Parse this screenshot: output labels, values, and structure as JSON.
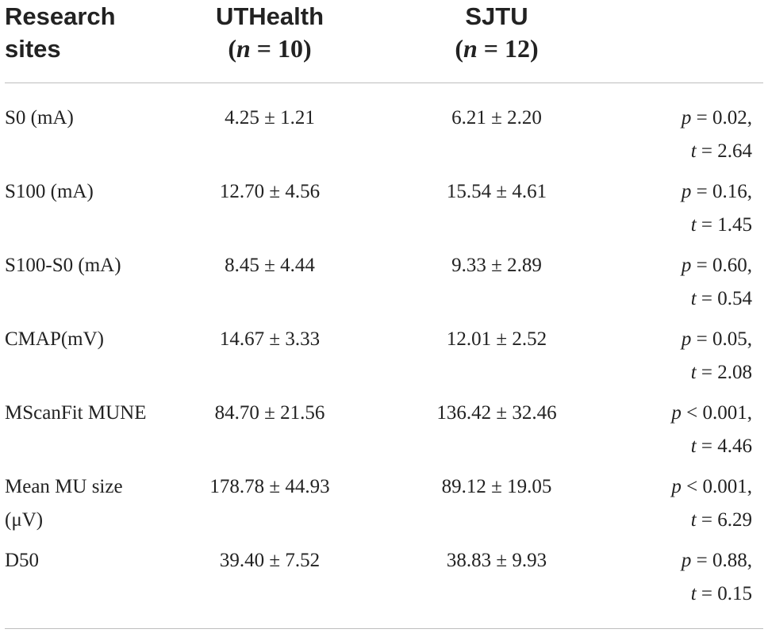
{
  "header": {
    "col1_line1": "Research",
    "col1_line2": "sites",
    "col2_name": "UTHealth",
    "col2_n": "10",
    "col3_name": "SJTU",
    "col3_n": "12"
  },
  "rows": [
    {
      "label": "S0 (mA)",
      "v1": "4.25 ± 1.21",
      "v2": "6.21 ± 2.20",
      "p_op": "=",
      "p": "0.02,",
      "t": "2.64"
    },
    {
      "label": "S100 (mA)",
      "v1": "12.70 ± 4.56",
      "v2": "15.54 ± 4.61",
      "p_op": "=",
      "p": "0.16,",
      "t": "1.45"
    },
    {
      "label": "S100-S0 (mA)",
      "v1": "8.45 ± 4.44",
      "v2": "9.33 ± 2.89",
      "p_op": "=",
      "p": "0.60,",
      "t": "0.54"
    },
    {
      "label": "CMAP(mV)",
      "v1": "14.67 ± 3.33",
      "v2": "12.01 ± 2.52",
      "p_op": "=",
      "p": "0.05,",
      "t": "2.08"
    },
    {
      "label": "MScanFit MUNE",
      "v1": "84.70 ± 21.56",
      "v2": "136.42 ± 32.46",
      "p_op": "<",
      "p": "0.001,",
      "t": "4.46"
    },
    {
      "label": "Mean MU size (μV)",
      "v1": "178.78 ± 44.93",
      "v2": "89.12 ± 19.05",
      "p_op": "<",
      "p": "0.001,",
      "t": "6.29"
    },
    {
      "label": "D50",
      "v1": "39.40 ± 7.52",
      "v2": "38.83 ± 9.93",
      "p_op": "=",
      "p": "0.88,",
      "t": "0.15"
    }
  ]
}
